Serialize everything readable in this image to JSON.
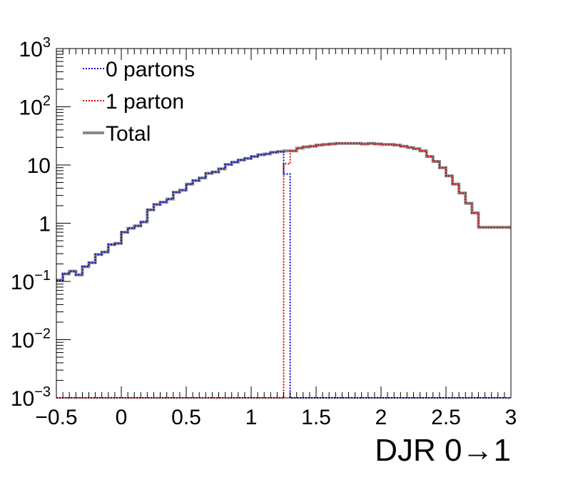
{
  "chart_data": {
    "type": "line",
    "title": "",
    "xlabel": "DJR 0→1",
    "ylabel": "",
    "xlim": [
      -0.5,
      3.0
    ],
    "ylim": [
      0.001,
      1000
    ],
    "y_scale": "log",
    "grid": false,
    "legend": "top-left",
    "x_ticks": [
      "−0.5",
      "0",
      "0.5",
      "1",
      "1.5",
      "2",
      "2.5",
      "3"
    ],
    "x_tick_values": [
      -0.5,
      0,
      0.5,
      1,
      1.5,
      2,
      2.5,
      3
    ],
    "y_ticks": [
      {
        "value": 0.001,
        "base": "10",
        "exp": "−3"
      },
      {
        "value": 0.01,
        "base": "10",
        "exp": "−2"
      },
      {
        "value": 0.1,
        "base": "10",
        "exp": "−1"
      },
      {
        "value": 1,
        "base": "1",
        "exp": ""
      },
      {
        "value": 10,
        "base": "10",
        "exp": ""
      },
      {
        "value": 100,
        "base": "10",
        "exp": "2"
      },
      {
        "value": 1000,
        "base": "10",
        "exp": "3"
      }
    ],
    "bin_width": 0.05,
    "series": [
      {
        "name": "0 partons",
        "color": "#0000cc",
        "style": "dotted",
        "bins": [
          [
            -0.5,
            0.105
          ],
          [
            -0.45,
            0.135
          ],
          [
            -0.4,
            0.15
          ],
          [
            -0.35,
            0.13
          ],
          [
            -0.3,
            0.18
          ],
          [
            -0.25,
            0.21
          ],
          [
            -0.2,
            0.29
          ],
          [
            -0.15,
            0.32
          ],
          [
            -0.1,
            0.43
          ],
          [
            -0.05,
            0.45
          ],
          [
            0.0,
            0.7
          ],
          [
            0.05,
            0.82
          ],
          [
            0.1,
            0.9
          ],
          [
            0.15,
            1.05
          ],
          [
            0.2,
            1.7
          ],
          [
            0.25,
            2.1
          ],
          [
            0.3,
            2.3
          ],
          [
            0.35,
            2.6
          ],
          [
            0.4,
            3.4
          ],
          [
            0.45,
            3.7
          ],
          [
            0.5,
            4.7
          ],
          [
            0.55,
            5.4
          ],
          [
            0.6,
            6.0
          ],
          [
            0.65,
            7.2
          ],
          [
            0.7,
            7.6
          ],
          [
            0.75,
            8.6
          ],
          [
            0.8,
            10.2
          ],
          [
            0.85,
            11.2
          ],
          [
            0.9,
            12.2
          ],
          [
            0.95,
            13.0
          ],
          [
            1.0,
            14.0
          ],
          [
            1.05,
            15.0
          ],
          [
            1.1,
            15.5
          ],
          [
            1.15,
            16.5
          ],
          [
            1.2,
            17.0
          ],
          [
            1.25,
            7.0
          ],
          [
            1.3,
            0.001
          ],
          [
            1.35,
            0.001
          ],
          [
            1.4,
            0.001
          ],
          [
            1.45,
            0.001
          ],
          [
            1.5,
            0.001
          ],
          [
            1.55,
            0.001
          ],
          [
            1.6,
            0.001
          ],
          [
            1.65,
            0.001
          ],
          [
            1.7,
            0.001
          ],
          [
            1.75,
            0.001
          ],
          [
            1.8,
            0.001
          ],
          [
            1.85,
            0.001
          ],
          [
            1.9,
            0.001
          ],
          [
            1.95,
            0.001
          ],
          [
            2.0,
            0.001
          ],
          [
            2.05,
            0.001
          ],
          [
            2.1,
            0.001
          ],
          [
            2.15,
            0.001
          ],
          [
            2.2,
            0.001
          ],
          [
            2.25,
            0.001
          ],
          [
            2.3,
            0.001
          ],
          [
            2.35,
            0.001
          ],
          [
            2.4,
            0.001
          ],
          [
            2.45,
            0.001
          ],
          [
            2.5,
            0.001
          ],
          [
            2.55,
            0.001
          ],
          [
            2.6,
            0.001
          ],
          [
            2.65,
            0.001
          ],
          [
            2.7,
            0.001
          ],
          [
            2.75,
            0.001
          ],
          [
            2.8,
            0.001
          ],
          [
            2.85,
            0.001
          ],
          [
            2.9,
            0.001
          ],
          [
            2.95,
            0.001
          ]
        ]
      },
      {
        "name": "1 parton",
        "color": "#dd0000",
        "style": "dotted",
        "bins": [
          [
            -0.5,
            0.001
          ],
          [
            -0.45,
            0.001
          ],
          [
            -0.4,
            0.001
          ],
          [
            -0.35,
            0.001
          ],
          [
            -0.3,
            0.001
          ],
          [
            -0.25,
            0.001
          ],
          [
            -0.2,
            0.001
          ],
          [
            -0.15,
            0.001
          ],
          [
            -0.1,
            0.001
          ],
          [
            -0.05,
            0.001
          ],
          [
            0.0,
            0.001
          ],
          [
            0.05,
            0.001
          ],
          [
            0.1,
            0.001
          ],
          [
            0.15,
            0.001
          ],
          [
            0.2,
            0.001
          ],
          [
            0.25,
            0.001
          ],
          [
            0.3,
            0.001
          ],
          [
            0.35,
            0.001
          ],
          [
            0.4,
            0.001
          ],
          [
            0.45,
            0.001
          ],
          [
            0.5,
            0.001
          ],
          [
            0.55,
            0.001
          ],
          [
            0.6,
            0.001
          ],
          [
            0.65,
            0.001
          ],
          [
            0.7,
            0.001
          ],
          [
            0.75,
            0.001
          ],
          [
            0.8,
            0.001
          ],
          [
            0.85,
            0.001
          ],
          [
            0.9,
            0.001
          ],
          [
            0.95,
            0.001
          ],
          [
            1.0,
            0.001
          ],
          [
            1.05,
            0.001
          ],
          [
            1.1,
            0.001
          ],
          [
            1.15,
            0.001
          ],
          [
            1.2,
            0.001
          ],
          [
            1.25,
            10.5
          ],
          [
            1.3,
            17.5
          ],
          [
            1.35,
            19.5
          ],
          [
            1.4,
            20.5
          ],
          [
            1.45,
            21.0
          ],
          [
            1.5,
            22.0
          ],
          [
            1.55,
            22.5
          ],
          [
            1.6,
            23.0
          ],
          [
            1.65,
            23.5
          ],
          [
            1.7,
            23.5
          ],
          [
            1.75,
            23.5
          ],
          [
            1.8,
            23.5
          ],
          [
            1.85,
            23.0
          ],
          [
            1.9,
            23.5
          ],
          [
            1.95,
            23.0
          ],
          [
            2.0,
            22.5
          ],
          [
            2.05,
            22.5
          ],
          [
            2.1,
            22.0
          ],
          [
            2.15,
            21.0
          ],
          [
            2.2,
            20.0
          ],
          [
            2.25,
            19.0
          ],
          [
            2.3,
            17.5
          ],
          [
            2.35,
            14.0
          ],
          [
            2.4,
            11.5
          ],
          [
            2.45,
            9.0
          ],
          [
            2.5,
            6.5
          ],
          [
            2.55,
            4.7
          ],
          [
            2.6,
            3.3
          ],
          [
            2.65,
            2.2
          ],
          [
            2.7,
            1.5
          ],
          [
            2.75,
            0.85
          ],
          [
            2.8,
            0.85
          ],
          [
            2.85,
            0.85
          ],
          [
            2.9,
            0.85
          ],
          [
            2.95,
            0.85
          ]
        ]
      },
      {
        "name": "Total",
        "color": "#888888",
        "style": "solid",
        "bins": [
          [
            -0.5,
            0.105
          ],
          [
            -0.45,
            0.135
          ],
          [
            -0.4,
            0.15
          ],
          [
            -0.35,
            0.13
          ],
          [
            -0.3,
            0.18
          ],
          [
            -0.25,
            0.21
          ],
          [
            -0.2,
            0.29
          ],
          [
            -0.15,
            0.32
          ],
          [
            -0.1,
            0.43
          ],
          [
            -0.05,
            0.45
          ],
          [
            0.0,
            0.7
          ],
          [
            0.05,
            0.82
          ],
          [
            0.1,
            0.9
          ],
          [
            0.15,
            1.05
          ],
          [
            0.2,
            1.7
          ],
          [
            0.25,
            2.1
          ],
          [
            0.3,
            2.3
          ],
          [
            0.35,
            2.6
          ],
          [
            0.4,
            3.4
          ],
          [
            0.45,
            3.7
          ],
          [
            0.5,
            4.7
          ],
          [
            0.55,
            5.4
          ],
          [
            0.6,
            6.0
          ],
          [
            0.65,
            7.2
          ],
          [
            0.7,
            7.6
          ],
          [
            0.75,
            8.6
          ],
          [
            0.8,
            10.2
          ],
          [
            0.85,
            11.2
          ],
          [
            0.9,
            12.2
          ],
          [
            0.95,
            13.0
          ],
          [
            1.0,
            14.0
          ],
          [
            1.05,
            15.0
          ],
          [
            1.1,
            15.5
          ],
          [
            1.15,
            16.5
          ],
          [
            1.2,
            17.0
          ],
          [
            1.25,
            17.5
          ],
          [
            1.3,
            17.5
          ],
          [
            1.35,
            19.5
          ],
          [
            1.4,
            20.5
          ],
          [
            1.45,
            21.0
          ],
          [
            1.5,
            22.0
          ],
          [
            1.55,
            22.5
          ],
          [
            1.6,
            23.0
          ],
          [
            1.65,
            23.5
          ],
          [
            1.7,
            23.5
          ],
          [
            1.75,
            23.5
          ],
          [
            1.8,
            23.5
          ],
          [
            1.85,
            23.0
          ],
          [
            1.9,
            23.5
          ],
          [
            1.95,
            23.0
          ],
          [
            2.0,
            22.5
          ],
          [
            2.05,
            22.5
          ],
          [
            2.1,
            22.0
          ],
          [
            2.15,
            21.0
          ],
          [
            2.2,
            20.0
          ],
          [
            2.25,
            19.0
          ],
          [
            2.3,
            17.5
          ],
          [
            2.35,
            14.0
          ],
          [
            2.4,
            11.5
          ],
          [
            2.45,
            9.0
          ],
          [
            2.5,
            6.5
          ],
          [
            2.55,
            4.7
          ],
          [
            2.6,
            3.3
          ],
          [
            2.65,
            2.2
          ],
          [
            2.7,
            1.5
          ],
          [
            2.75,
            0.85
          ],
          [
            2.8,
            0.85
          ],
          [
            2.85,
            0.85
          ],
          [
            2.9,
            0.85
          ],
          [
            2.95,
            0.85
          ]
        ]
      }
    ]
  }
}
